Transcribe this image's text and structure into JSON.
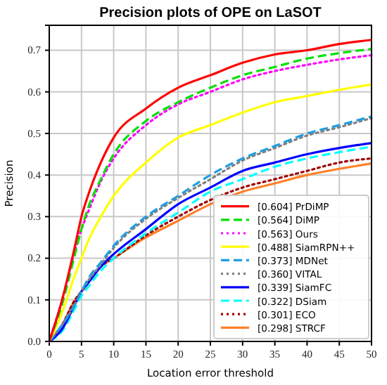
{
  "chart_data": {
    "type": "line",
    "title": "Precision plots of OPE on LaSOT",
    "xlabel": "Location error threshold",
    "ylabel": "Precision",
    "x": [
      0,
      2,
      4,
      5,
      6,
      8,
      10,
      15,
      20,
      25,
      30,
      35,
      40,
      45,
      50
    ],
    "xlim": [
      0,
      50
    ],
    "xticks": [
      0,
      5,
      10,
      15,
      20,
      25,
      30,
      35,
      40,
      45,
      50
    ],
    "ylim": [
      0,
      0.76
    ],
    "yticks": [
      {
        "value": 0,
        "label": "0.0"
      },
      {
        "value": 0.1,
        "label": "0.1"
      },
      {
        "value": 0.2,
        "label": "0.2"
      },
      {
        "value": 0.3,
        "label": "0.3"
      },
      {
        "value": 0.4,
        "label": "0.4"
      },
      {
        "value": 0.5,
        "label": "0.5"
      },
      {
        "value": 0.6,
        "label": "0.6"
      },
      {
        "value": 0.7,
        "label": "0.7"
      }
    ],
    "grid": true,
    "legend": "bottom right",
    "series": [
      {
        "name": "[0.604] PrDiMP",
        "color": "#ff0000",
        "line_style": "solid",
        "values": [
          0,
          0.1,
          0.23,
          0.3,
          0.35,
          0.43,
          0.49,
          0.56,
          0.61,
          0.64,
          0.67,
          0.69,
          0.7,
          0.715,
          0.725
        ]
      },
      {
        "name": "[0.564] DiMP",
        "color": "#00e000",
        "line_style": "dashed",
        "values": [
          0,
          0.09,
          0.21,
          0.27,
          0.32,
          0.39,
          0.45,
          0.53,
          0.575,
          0.61,
          0.64,
          0.66,
          0.68,
          0.693,
          0.703
        ]
      },
      {
        "name": "[0.563] Ours",
        "color": "#ff00ff",
        "line_style": "dotted",
        "values": [
          0,
          0.1,
          0.22,
          0.27,
          0.31,
          0.385,
          0.44,
          0.52,
          0.57,
          0.6,
          0.63,
          0.65,
          0.665,
          0.678,
          0.688
        ]
      },
      {
        "name": "[0.488] SiamRPN++",
        "color": "#ffff00",
        "line_style": "solid",
        "values": [
          0,
          0.07,
          0.16,
          0.2,
          0.24,
          0.3,
          0.35,
          0.43,
          0.49,
          0.52,
          0.55,
          0.575,
          0.59,
          0.605,
          0.618
        ]
      },
      {
        "name": "[0.373] MDNet",
        "color": "#1f9ee0",
        "line_style": "dashed",
        "values": [
          0,
          0.04,
          0.09,
          0.12,
          0.15,
          0.19,
          0.23,
          0.3,
          0.35,
          0.4,
          0.44,
          0.47,
          0.5,
          0.52,
          0.541
        ]
      },
      {
        "name": "[0.360] VITAL",
        "color": "#808080",
        "line_style": "dotted",
        "values": [
          0,
          0.04,
          0.09,
          0.12,
          0.145,
          0.185,
          0.225,
          0.295,
          0.345,
          0.39,
          0.435,
          0.465,
          0.495,
          0.515,
          0.537
        ]
      },
      {
        "name": "[0.339] SiamFC",
        "color": "#0000ff",
        "line_style": "solid",
        "values": [
          0,
          0.03,
          0.09,
          0.12,
          0.14,
          0.18,
          0.21,
          0.27,
          0.33,
          0.37,
          0.41,
          0.43,
          0.45,
          0.465,
          0.477
        ]
      },
      {
        "name": "[0.322] DSiam",
        "color": "#00ffff",
        "line_style": "dashed",
        "values": [
          0,
          0.025,
          0.08,
          0.11,
          0.13,
          0.17,
          0.2,
          0.26,
          0.31,
          0.36,
          0.39,
          0.42,
          0.44,
          0.455,
          0.468
        ]
      },
      {
        "name": "[0.301] ECO",
        "color": "#a00000",
        "line_style": "dotted",
        "values": [
          0,
          0.04,
          0.1,
          0.12,
          0.14,
          0.18,
          0.2,
          0.255,
          0.3,
          0.34,
          0.37,
          0.39,
          0.41,
          0.43,
          0.44
        ]
      },
      {
        "name": "[0.298] STRCF",
        "color": "#ff7f27",
        "line_style": "solid",
        "values": [
          0,
          0.04,
          0.1,
          0.12,
          0.14,
          0.18,
          0.2,
          0.25,
          0.29,
          0.33,
          0.36,
          0.38,
          0.4,
          0.415,
          0.428
        ]
      }
    ]
  }
}
